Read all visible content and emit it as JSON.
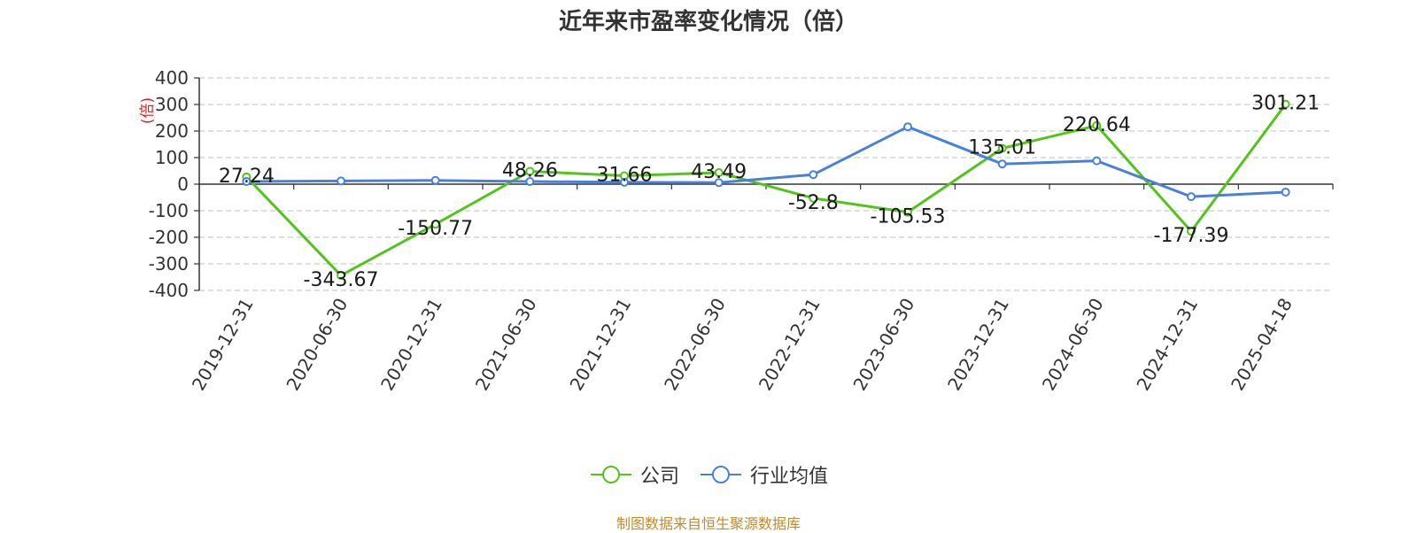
{
  "chart_data": {
    "type": "line",
    "title": "近年来市盈率变化情况（倍）",
    "ylabel": "(倍)",
    "ylim": [
      -400,
      400
    ],
    "yticks": [
      400,
      300,
      200,
      100,
      0,
      -100,
      -200,
      -300,
      -400
    ],
    "grid": true,
    "legend_position": "bottom",
    "categories": [
      "2019-12-31",
      "2020-06-30",
      "2020-12-31",
      "2021-06-30",
      "2021-12-31",
      "2022-06-30",
      "2022-12-31",
      "2023-06-30",
      "2023-12-31",
      "2024-06-30",
      "2024-12-31",
      "2025-04-18"
    ],
    "series": [
      {
        "name": "公司",
        "color": "#52c41a",
        "values": [
          27.24,
          -343.67,
          -150.77,
          48.26,
          31.66,
          43.49,
          -52.8,
          -105.53,
          135.01,
          220.64,
          -177.39,
          301.21
        ],
        "labels": [
          "27.24",
          "-343.67",
          "-150.77",
          "48.26",
          "31.66",
          "43.49",
          "-52.8",
          "-105.53",
          "135.01",
          "220.64",
          "-177.39",
          "301.21"
        ]
      },
      {
        "name": "行业均值",
        "color": "#4a7fdc",
        "values": [
          10,
          12,
          14,
          10,
          7,
          6,
          36,
          216,
          76,
          88,
          -47,
          -30
        ]
      }
    ]
  },
  "source": "制图数据来自恒生聚源数据库"
}
